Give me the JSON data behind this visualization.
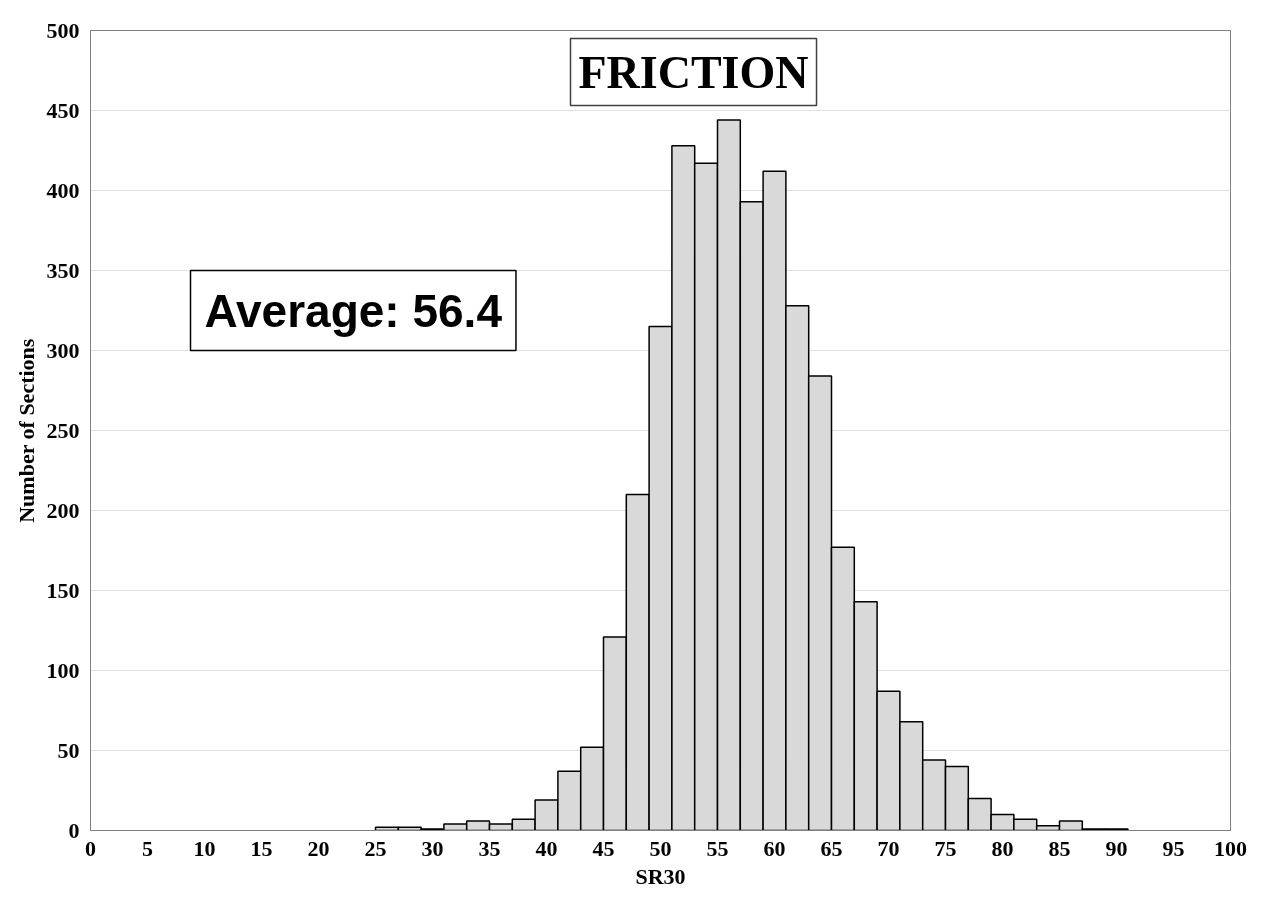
{
  "chart_data": {
    "type": "histogram",
    "title": "FRICTION",
    "xlabel": "SR30",
    "ylabel": "Number of Sections",
    "bins": [
      25,
      27,
      29,
      31,
      33,
      35,
      37,
      39,
      41,
      43,
      45,
      47,
      49,
      51,
      53,
      55,
      57,
      59,
      61,
      63,
      65,
      67,
      69,
      71,
      73,
      75,
      77,
      79,
      81,
      83,
      85,
      87,
      89,
      91
    ],
    "values": [
      2,
      2,
      1,
      4,
      6,
      4,
      7,
      19,
      37,
      52,
      121,
      210,
      315,
      428,
      417,
      444,
      393,
      412,
      328,
      284,
      177,
      143,
      87,
      68,
      44,
      40,
      20,
      10,
      7,
      3,
      6,
      1,
      1
    ],
    "color": "#d9d9d9",
    "xlim": [
      0,
      100
    ],
    "xticks": [
      0,
      5,
      10,
      15,
      20,
      25,
      30,
      35,
      40,
      45,
      50,
      55,
      60,
      65,
      70,
      75,
      80,
      85,
      90,
      95,
      100
    ],
    "ylim": [
      0,
      500
    ],
    "yticks": [
      0,
      50,
      100,
      150,
      200,
      250,
      300,
      350,
      400,
      450,
      500
    ],
    "grid": "y",
    "annotations": [
      "Average: 56.4"
    ]
  }
}
